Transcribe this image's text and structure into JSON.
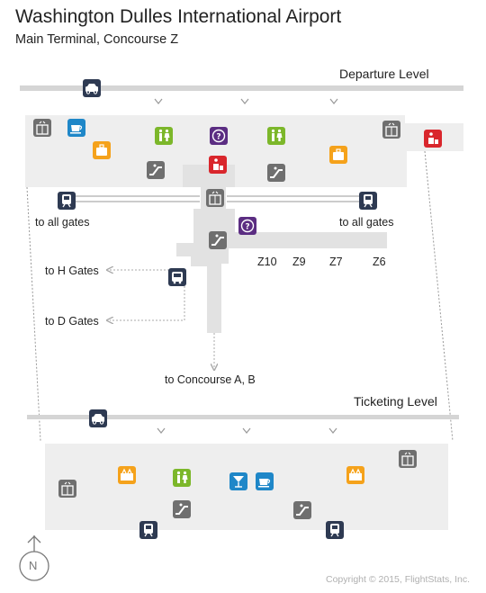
{
  "header": {
    "title": "Washington Dulles International Airport",
    "subtitle": "Main Terminal,   Concourse Z"
  },
  "levels": {
    "departure": "Departure Level",
    "ticketing": "Ticketing Level"
  },
  "labels": {
    "to_all_gates_left": "to all gates",
    "to_all_gates_right": "to all gates",
    "to_h_gates": "to H Gates",
    "to_d_gates": "to D Gates",
    "to_concourse": "to Concourse A, B"
  },
  "gates": [
    "Z10",
    "Z9",
    "Z7",
    "Z6"
  ],
  "footer": {
    "copyright": "Copyright © 2015, FlightStats, Inc.",
    "compass": "N"
  },
  "colors": {
    "floor": "#eeeeee",
    "road": "#d5d5d5",
    "navy": "#2e3a52",
    "gray_icon": "#6f6f6f",
    "blue_icon": "#1f87c8",
    "orange_icon": "#f5a21b",
    "green_icon": "#7cb72a",
    "purple_icon": "#5b2d82",
    "red_icon": "#d9262c"
  },
  "icons": {
    "taxi": "taxi-icon",
    "train": "train-icon",
    "bus": "bus-icon",
    "elevator": "elevator-icon",
    "escalator": "escalator-icon",
    "restroom": "restroom-icon",
    "info": "information-icon",
    "coffee": "coffee-icon",
    "baggage": "baggage-icon",
    "bar": "bar-icon",
    "shop": "shop-icon",
    "ticketing": "ticketing-icon"
  }
}
